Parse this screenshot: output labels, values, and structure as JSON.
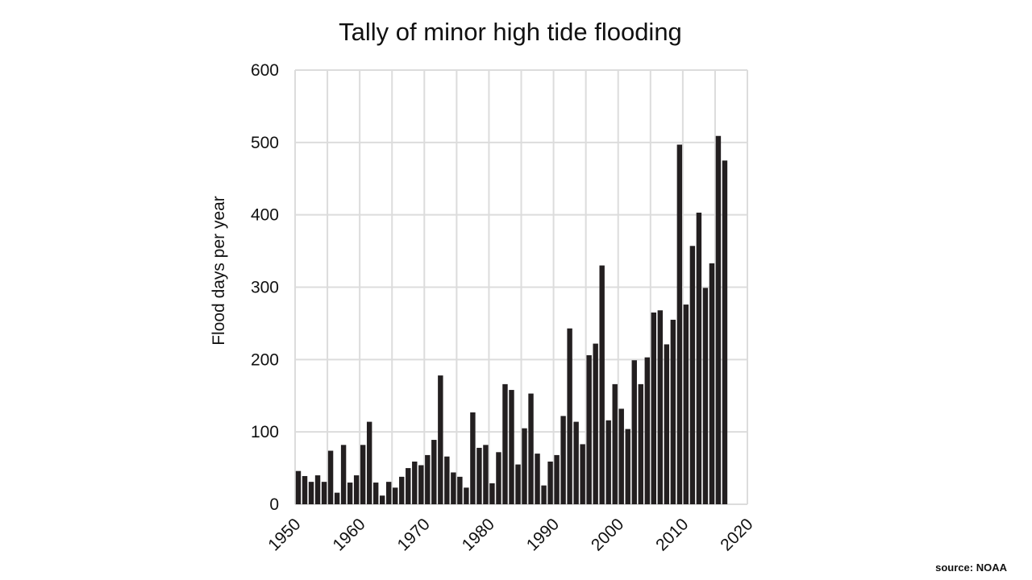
{
  "chart_data": {
    "type": "bar",
    "title": "Tally of minor high tide flooding",
    "xlabel": "",
    "ylabel": "Flood days per year",
    "x_tick_labels": [
      "1950",
      "1960",
      "1970",
      "1980",
      "1990",
      "2000",
      "2010",
      "2020"
    ],
    "y_tick_labels": [
      "0",
      "100",
      "200",
      "300",
      "400",
      "500",
      "600"
    ],
    "xlim": [
      1950,
      2020
    ],
    "ylim": [
      0,
      600
    ],
    "grid": true,
    "legend": "none",
    "bar_color": "#231f20",
    "x": [
      1950,
      1951,
      1952,
      1953,
      1954,
      1955,
      1956,
      1957,
      1958,
      1959,
      1960,
      1961,
      1962,
      1963,
      1964,
      1965,
      1966,
      1967,
      1968,
      1969,
      1970,
      1971,
      1972,
      1973,
      1974,
      1975,
      1976,
      1977,
      1978,
      1979,
      1980,
      1981,
      1982,
      1983,
      1984,
      1985,
      1986,
      1987,
      1988,
      1989,
      1990,
      1991,
      1992,
      1993,
      1994,
      1995,
      1996,
      1997,
      1998,
      1999,
      2000,
      2001,
      2002,
      2003,
      2004,
      2005,
      2006,
      2007,
      2008,
      2009,
      2010,
      2011,
      2012,
      2013,
      2014,
      2015,
      2016
    ],
    "values": [
      46,
      39,
      31,
      40,
      31,
      74,
      16,
      82,
      30,
      40,
      82,
      114,
      30,
      12,
      31,
      23,
      38,
      50,
      59,
      54,
      68,
      89,
      178,
      66,
      44,
      38,
      23,
      127,
      78,
      82,
      29,
      72,
      166,
      158,
      55,
      105,
      153,
      70,
      26,
      59,
      68,
      122,
      243,
      114,
      83,
      206,
      222,
      330,
      116,
      166,
      132,
      104,
      199,
      166,
      203,
      265,
      268,
      221,
      255,
      497,
      276,
      357,
      403,
      299,
      333,
      509,
      475
    ]
  },
  "source": "source: NOAA"
}
